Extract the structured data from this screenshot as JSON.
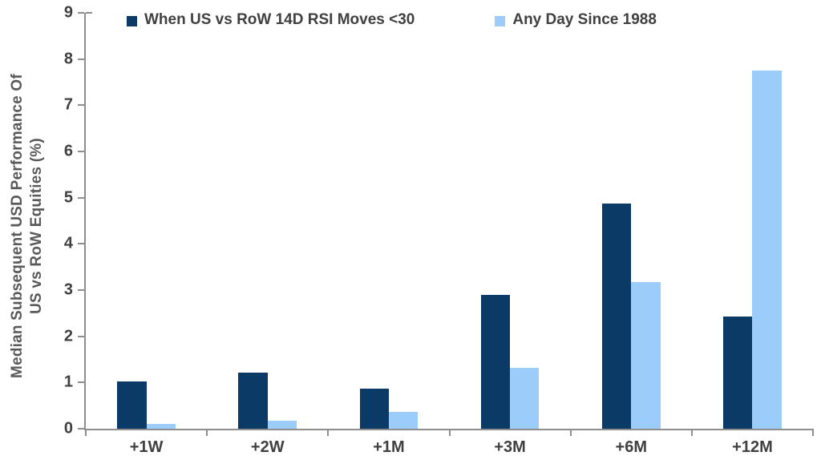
{
  "chart_data": {
    "type": "bar",
    "title": "",
    "categories": [
      "+1W",
      "+2W",
      "+1M",
      "+3M",
      "+6M",
      "+12M"
    ],
    "series": [
      {
        "key": "rsi-below-30",
        "name": "When US vs RoW 14D RSI Moves <30",
        "color": "#0C3A67",
        "values": [
          1.03,
          1.22,
          0.87,
          2.9,
          4.87,
          2.42
        ]
      },
      {
        "key": "any-day",
        "name": "Any Day Since 1988",
        "color": "#9CCDFA",
        "values": [
          0.1,
          0.17,
          0.37,
          1.32,
          3.17,
          7.75
        ]
      }
    ],
    "xlabel": "",
    "ylabel": "Median Subsequent USD Performance Of US vs RoW Equities (%)",
    "ylabel_lines": [
      "Median Subsequent USD Performance Of",
      "US vs RoW Equities (%)"
    ],
    "ylim": [
      0,
      9
    ],
    "yticks": [
      0,
      1,
      2,
      3,
      4,
      5,
      6,
      7,
      8,
      9
    ],
    "grid": false,
    "legend_position": "top"
  },
  "colors": {
    "series_rsi": "#0C3A67",
    "series_any_day": "#9CCDFA",
    "axis_line": "#8E8E8E",
    "tick_text": "#404040",
    "axis_title_text": "#595959",
    "background": "#FFFFFF"
  }
}
